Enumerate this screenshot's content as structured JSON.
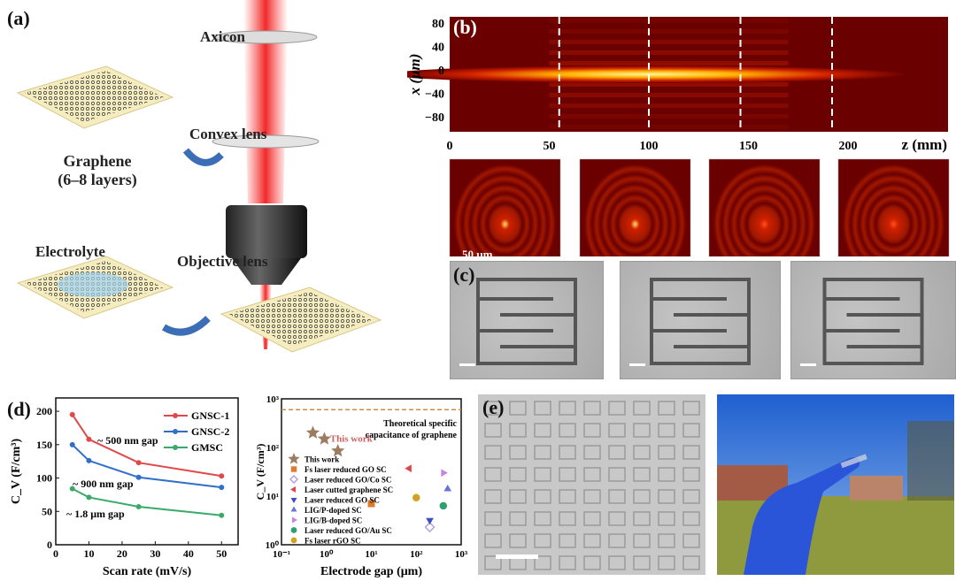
{
  "panel_a": {
    "label": "(a)",
    "axicon": "Axicon",
    "convex_lens": "Convex lens",
    "objective_lens": "Objective lens",
    "graphene": "Graphene",
    "graphene_layers": "(6–8 layers)",
    "electrolyte": "Electrolyte"
  },
  "panel_b": {
    "label": "(b)",
    "ylabel": "x (μm)",
    "xlabel": "z (mm)",
    "yticks": [
      "80",
      "40",
      "0",
      "−40",
      "−80"
    ],
    "xticks": [
      "0",
      "50",
      "100",
      "150",
      "200"
    ],
    "dashed_z_mm": [
      55,
      100,
      146,
      192
    ],
    "scale_bar": "50 μm",
    "spot_intensity": [
      1,
      1,
      0.8,
      0.5
    ]
  },
  "panel_c": {
    "label": "(c)"
  },
  "panel_e": {
    "label": "(e)"
  },
  "chart_data": [
    {
      "type": "line",
      "panel": "(d)",
      "xlabel": "Scan rate (mV/s)",
      "ylabel": "C_V (F/cm³)",
      "xlim": [
        0,
        55
      ],
      "ylim": [
        0,
        220
      ],
      "xticks": [
        0,
        10,
        20,
        30,
        40,
        50
      ],
      "yticks": [
        0,
        50,
        100,
        150,
        200
      ],
      "legend": "top-right",
      "x": [
        5,
        10,
        25,
        50
      ],
      "series": [
        {
          "name": "GNSC-1",
          "color": "#e0484a",
          "values": [
            195,
            158,
            123,
            103
          ]
        },
        {
          "name": "GNSC-2",
          "color": "#2f6fc8",
          "values": [
            150,
            126,
            101,
            86
          ]
        },
        {
          "name": "GMSC",
          "color": "#3aaa6a",
          "values": [
            84,
            71,
            57,
            44
          ]
        }
      ],
      "annotations": [
        "~ 500 nm gap",
        "~ 900 nm gap",
        "~ 1.8 μm gap"
      ]
    },
    {
      "type": "scatter",
      "xlabel": "Electrode gap (μm)",
      "ylabel": "C_V (F/cm³)",
      "xscale": "log",
      "yscale": "log",
      "xlim": [
        0.1,
        1000
      ],
      "ylim": [
        1,
        1000
      ],
      "xticks": [
        "10⁻¹",
        "10⁰",
        "10¹",
        "10²",
        "10³"
      ],
      "yticks": [
        "10⁰",
        "10¹",
        "10²",
        "10³"
      ],
      "reference_line": {
        "y": 600,
        "label1": "Theoretical specific",
        "label2": "capacitance of graphene",
        "color": "#d08a40"
      },
      "highlight_label": "This work",
      "series": [
        {
          "name": "This work",
          "marker": "star",
          "color": "#9c7d62",
          "points": [
            [
              0.5,
              200
            ],
            [
              0.9,
              150
            ],
            [
              1.8,
              85
            ]
          ]
        },
        {
          "name": "Fs laser reduced GO SC",
          "marker": "square",
          "color": "#e07b2a",
          "points": [
            [
              10,
              7
            ]
          ]
        },
        {
          "name": "Laser reduced GO/Co SC",
          "marker": "diamond-open",
          "color": "#b4a0e0",
          "points": [
            [
              200,
              2.3
            ]
          ]
        },
        {
          "name": "Laser cutted graphene SC",
          "marker": "triangle-left",
          "color": "#e04545",
          "points": [
            [
              70,
              37
            ]
          ]
        },
        {
          "name": "Laser reduced GO SC",
          "marker": "triangle-down",
          "color": "#3a4fc0",
          "points": [
            [
              200,
              3.2
            ]
          ]
        },
        {
          "name": "LIG/P-doped SC",
          "marker": "triangle-up",
          "color": "#6a72d4",
          "points": [
            [
              500,
              14
            ]
          ]
        },
        {
          "name": "LIG/B-doped SC",
          "marker": "triangle-right",
          "color": "#c585e6",
          "points": [
            [
              400,
              30
            ]
          ]
        },
        {
          "name": "Laser reduced GO/Au SC",
          "marker": "circle",
          "color": "#2fa070",
          "points": [
            [
              400,
              6.3
            ]
          ]
        },
        {
          "name": "Fs laser rGO SC",
          "marker": "circle",
          "color": "#d4a020",
          "points": [
            [
              100,
              9.3
            ]
          ]
        }
      ]
    }
  ]
}
